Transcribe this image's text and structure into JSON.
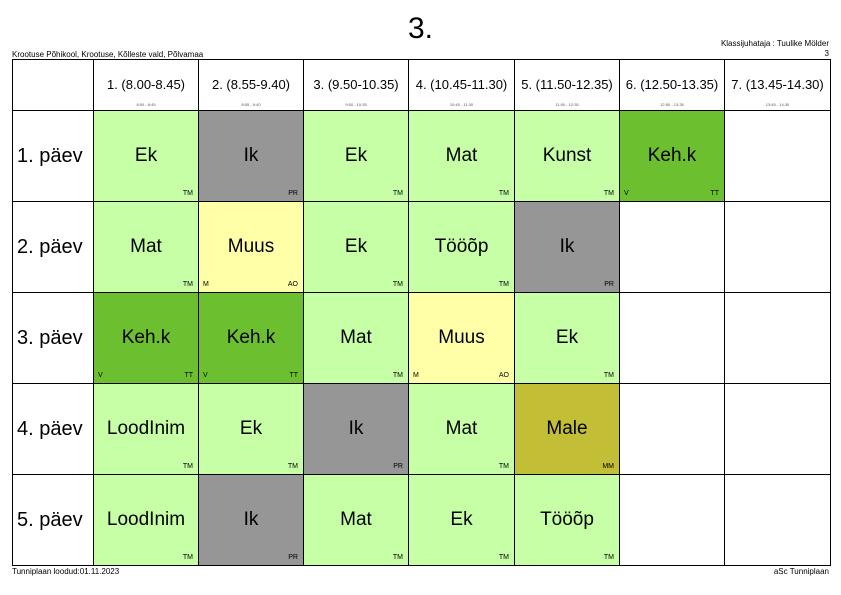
{
  "header": {
    "title": "3.",
    "school": "Krootuse Põhikool, Krootuse, Kõlleste vald, Põlvamaa",
    "class_teacher": "Klassijuhataja : Tuulike Mölder",
    "page_number": "3"
  },
  "periods": [
    {
      "label": "1. (8.00-8.45)",
      "sub": "8:00 - 8:45"
    },
    {
      "label": "2. (8.55-9.40)",
      "sub": "8:55 - 9:40"
    },
    {
      "label": "3. (9.50-10.35)",
      "sub": "9:50 - 10:35"
    },
    {
      "label": "4. (10.45-11.30)",
      "sub": "10:45 - 11:30"
    },
    {
      "label": "5. (11.50-12.35)",
      "sub": "11:50 - 12:35"
    },
    {
      "label": "6. (12.50-13.35)",
      "sub": "12:50 - 13:35"
    },
    {
      "label": "7. (13.45-14.30)",
      "sub": "13:45 - 14:30"
    }
  ],
  "days": [
    {
      "name": "1. päev",
      "cells": [
        {
          "subject": "Ek",
          "teacher": "TM",
          "room": "",
          "color": "#c6ffa5"
        },
        {
          "subject": "Ik",
          "teacher": "PR",
          "room": "",
          "color": "#969696"
        },
        {
          "subject": "Ek",
          "teacher": "TM",
          "room": "",
          "color": "#c6ffa5"
        },
        {
          "subject": "Mat",
          "teacher": "TM",
          "room": "",
          "color": "#c6ffa5"
        },
        {
          "subject": "Kunst",
          "teacher": "TM",
          "room": "",
          "color": "#c6ffa5"
        },
        {
          "subject": "Keh.k",
          "teacher": "TT",
          "room": "V",
          "color": "#6cbf2e"
        },
        {
          "subject": "",
          "teacher": "",
          "room": "",
          "color": "#ffffff"
        }
      ]
    },
    {
      "name": "2. päev",
      "cells": [
        {
          "subject": "Mat",
          "teacher": "TM",
          "room": "",
          "color": "#c6ffa5"
        },
        {
          "subject": "Muus",
          "teacher": "AO",
          "room": "M",
          "color": "#ffffa8"
        },
        {
          "subject": "Ek",
          "teacher": "TM",
          "room": "",
          "color": "#c6ffa5"
        },
        {
          "subject": "Tööõp",
          "teacher": "TM",
          "room": "",
          "color": "#c6ffa5"
        },
        {
          "subject": "Ik",
          "teacher": "PR",
          "room": "",
          "color": "#969696"
        },
        {
          "subject": "",
          "teacher": "",
          "room": "",
          "color": "#ffffff"
        },
        {
          "subject": "",
          "teacher": "",
          "room": "",
          "color": "#ffffff"
        }
      ]
    },
    {
      "name": "3. päev",
      "cells": [
        {
          "subject": "Keh.k",
          "teacher": "TT",
          "room": "V",
          "color": "#6cbf2e"
        },
        {
          "subject": "Keh.k",
          "teacher": "TT",
          "room": "V",
          "color": "#6cbf2e"
        },
        {
          "subject": "Mat",
          "teacher": "TM",
          "room": "",
          "color": "#c6ffa5"
        },
        {
          "subject": "Muus",
          "teacher": "AO",
          "room": "M",
          "color": "#ffffa8"
        },
        {
          "subject": "Ek",
          "teacher": "TM",
          "room": "",
          "color": "#c6ffa5"
        },
        {
          "subject": "",
          "teacher": "",
          "room": "",
          "color": "#ffffff"
        },
        {
          "subject": "",
          "teacher": "",
          "room": "",
          "color": "#ffffff"
        }
      ]
    },
    {
      "name": "4. päev",
      "cells": [
        {
          "subject": "LoodInim",
          "teacher": "TM",
          "room": "",
          "color": "#c6ffa5"
        },
        {
          "subject": "Ek",
          "teacher": "TM",
          "room": "",
          "color": "#c6ffa5"
        },
        {
          "subject": "Ik",
          "teacher": "PR",
          "room": "",
          "color": "#969696"
        },
        {
          "subject": "Mat",
          "teacher": "TM",
          "room": "",
          "color": "#c6ffa5"
        },
        {
          "subject": "Male",
          "teacher": "MM",
          "room": "",
          "color": "#c2be36"
        },
        {
          "subject": "",
          "teacher": "",
          "room": "",
          "color": "#ffffff"
        },
        {
          "subject": "",
          "teacher": "",
          "room": "",
          "color": "#ffffff"
        }
      ]
    },
    {
      "name": "5. päev",
      "cells": [
        {
          "subject": "LoodInim",
          "teacher": "TM",
          "room": "",
          "color": "#c6ffa5"
        },
        {
          "subject": "Ik",
          "teacher": "PR",
          "room": "",
          "color": "#969696"
        },
        {
          "subject": "Mat",
          "teacher": "TM",
          "room": "",
          "color": "#c6ffa5"
        },
        {
          "subject": "Ek",
          "teacher": "TM",
          "room": "",
          "color": "#c6ffa5"
        },
        {
          "subject": "Tööõp",
          "teacher": "TM",
          "room": "",
          "color": "#c6ffa5"
        },
        {
          "subject": "",
          "teacher": "",
          "room": "",
          "color": "#ffffff"
        },
        {
          "subject": "",
          "teacher": "",
          "room": "",
          "color": "#ffffff"
        }
      ]
    }
  ],
  "footer": {
    "created": "Tunniplaan loodud:01.11.2023",
    "software": "aSc Tunniplaan"
  }
}
